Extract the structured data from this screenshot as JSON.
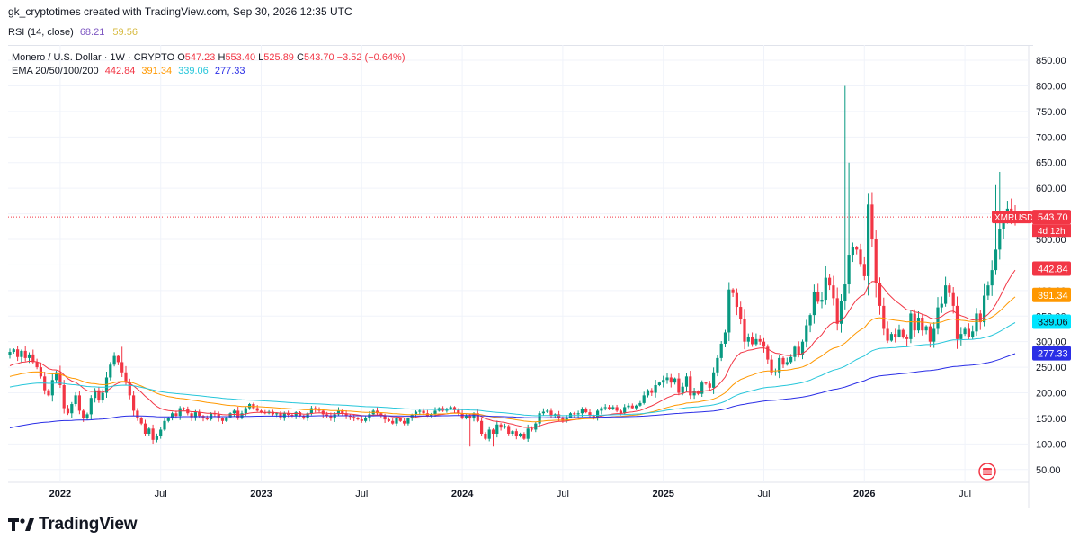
{
  "header": {
    "credit": "gk_cryptotimes created with TradingView.com, Sep 30, 2026 12:35 UTC"
  },
  "rsi": {
    "label": "RSI (14, close)",
    "value1": "68.21",
    "value2": "59.56"
  },
  "legend": {
    "title": "Monero / U.S. Dollar · 1W · CRYPTO",
    "o_label": "O",
    "o": "547.23",
    "h_label": "H",
    "h": "553.40",
    "l_label": "L",
    "l": "525.89",
    "c_label": "C",
    "c": "543.70",
    "change": "−3.52 (−0.64%)",
    "ema_label": "EMA 20/50/100/200",
    "ema": [
      "442.84",
      "391.34",
      "339.06",
      "277.33"
    ]
  },
  "footer": {
    "brand": "TradingView"
  },
  "colors": {
    "up": "#089981",
    "down": "#f23645",
    "ema20": "#f23645",
    "ema50": "#ff9800",
    "ema100": "#26c6da",
    "ema200": "#2a2ee6",
    "grid": "#f0f3fa",
    "axis_text": "#131722"
  },
  "chart_data": {
    "type": "candlestick",
    "symbol": "XMRUSD",
    "price_labels": {
      "last": "543.70",
      "countdown": "4d 12h",
      "ema20": "442.84",
      "ema50": "391.34",
      "ema100": "339.06",
      "ema200": "277.33"
    },
    "y_ticks": [
      "850.00",
      "800.00",
      "750.00",
      "700.00",
      "650.00",
      "600.00",
      "550.00",
      "500.00",
      "450.00",
      "400.00",
      "350.00",
      "300.00",
      "250.00",
      "200.00",
      "150.00",
      "100.00",
      "50.00"
    ],
    "y_tick_values": [
      850,
      800,
      750,
      700,
      650,
      600,
      550,
      500,
      450,
      400,
      350,
      300,
      250,
      200,
      150,
      100,
      50
    ],
    "ylim": [
      25,
      880
    ],
    "x_ticks": [
      {
        "label": "2022",
        "week": 13,
        "bold": true
      },
      {
        "label": "Jul",
        "week": 39,
        "bold": false
      },
      {
        "label": "2023",
        "week": 65,
        "bold": true
      },
      {
        "label": "Jul",
        "week": 91,
        "bold": false
      },
      {
        "label": "2024",
        "week": 117,
        "bold": true
      },
      {
        "label": "Jul",
        "week": 143,
        "bold": false
      },
      {
        "label": "2025",
        "week": 169,
        "bold": true
      },
      {
        "label": "Jul",
        "week": 195,
        "bold": false
      },
      {
        "label": "2026",
        "week": 221,
        "bold": true
      },
      {
        "label": "Jul",
        "week": 247,
        "bold": false
      }
    ],
    "close": [
      280,
      285,
      270,
      282,
      268,
      275,
      260,
      250,
      232,
      205,
      195,
      225,
      240,
      215,
      170,
      160,
      178,
      195,
      165,
      150,
      158,
      190,
      205,
      185,
      200,
      230,
      255,
      272,
      260,
      240,
      220,
      195,
      165,
      150,
      140,
      120,
      130,
      108,
      115,
      128,
      145,
      150,
      160,
      155,
      170,
      168,
      160,
      152,
      162,
      155,
      150,
      148,
      160,
      158,
      150,
      145,
      152,
      160,
      165,
      150,
      160,
      170,
      178,
      170,
      165,
      162,
      160,
      163,
      158,
      160,
      152,
      160,
      157,
      155,
      162,
      155,
      150,
      160,
      170,
      168,
      165,
      158,
      155,
      150,
      158,
      165,
      160,
      155,
      153,
      150,
      148,
      145,
      150,
      158,
      165,
      160,
      155,
      148,
      145,
      140,
      150,
      145,
      140,
      150,
      157,
      163,
      165,
      160,
      155,
      158,
      165,
      170,
      165,
      168,
      172,
      166,
      160,
      150,
      155,
      150,
      160,
      145,
      120,
      110,
      128,
      120,
      138,
      132,
      135,
      120,
      125,
      115,
      120,
      110,
      130,
      128,
      140,
      160,
      163,
      165,
      155,
      158,
      150,
      145,
      152,
      160,
      158,
      160,
      168,
      162,
      155,
      150,
      165,
      170,
      172,
      168,
      172,
      165,
      160,
      172,
      175,
      170,
      175,
      180,
      195,
      205,
      200,
      215,
      220,
      225,
      230,
      220,
      228,
      200,
      212,
      232,
      195,
      203,
      198,
      220,
      218,
      210,
      240,
      268,
      296,
      318,
      402,
      395,
      368,
      345,
      300,
      310,
      295,
      305,
      300,
      290,
      265,
      240,
      240,
      268,
      255,
      260,
      270,
      290,
      275,
      300,
      332,
      352,
      398,
      378,
      382,
      425,
      410,
      385,
      335,
      380,
      412,
      470,
      485,
      480,
      452,
      428,
      568,
      500,
      415,
      370,
      325,
      302,
      315,
      310,
      323,
      310,
      305,
      355,
      322,
      347,
      322,
      330,
      300,
      325,
      367,
      374,
      410,
      395,
      370,
      305,
      315,
      325,
      310,
      320,
      355,
      338,
      390,
      410,
      440,
      480,
      520,
      540,
      560,
      548,
      544
    ]
  }
}
